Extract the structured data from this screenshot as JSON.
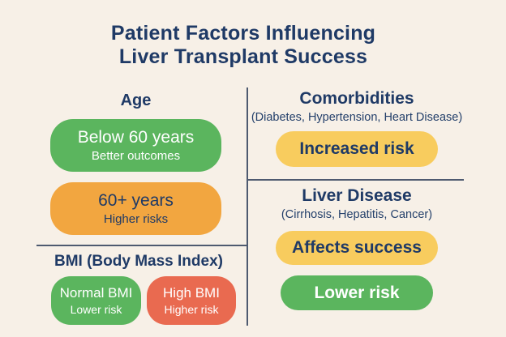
{
  "title": {
    "line1": "Patient Factors Influencing",
    "line2": "Liver Transplant Success"
  },
  "colors": {
    "background": "#f7f0e7",
    "navy_text": "#1f3a66",
    "green": "#5bb55e",
    "orange": "#f2a640",
    "yellow": "#f8cc5e",
    "red": "#e96a50",
    "divider": "#4e5a70",
    "pill_text_light": "#ffffff"
  },
  "sections": {
    "age": {
      "heading": "Age",
      "pills": [
        {
          "title": "Below 60 years",
          "subtitle": "Better outcomes"
        },
        {
          "title": "60+ years",
          "subtitle": "Higher risks"
        }
      ]
    },
    "bmi": {
      "heading": "BMI (Body Mass Index)",
      "pills": [
        {
          "title": "Normal BMI",
          "subtitle": "Lower risk"
        },
        {
          "title": "High BMI",
          "subtitle": "Higher risk"
        }
      ]
    },
    "comorbidities": {
      "heading": "Comorbidities",
      "subtitle": "(Diabetes, Hypertension, Heart Disease)",
      "pills": [
        {
          "label": "Increased risk"
        }
      ]
    },
    "liver_disease": {
      "heading": "Liver Disease",
      "subtitle": "(Cirrhosis, Hepatitis, Cancer)",
      "pills": [
        {
          "label": "Affects success"
        },
        {
          "label": "Lower risk"
        }
      ]
    }
  }
}
